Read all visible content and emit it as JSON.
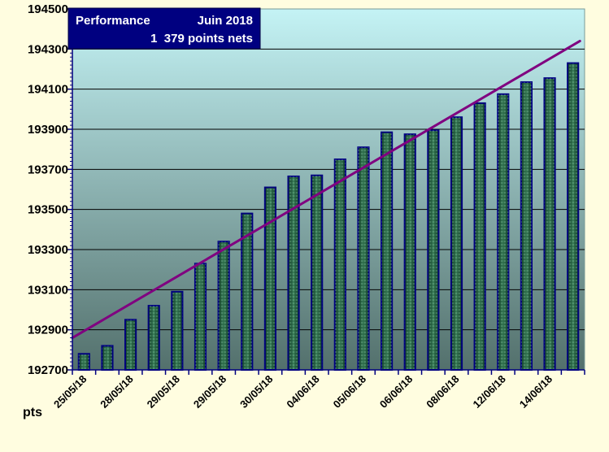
{
  "chart_data": {
    "type": "bar",
    "title_box": {
      "line1_left": "Performance",
      "line1_right": "Juin 2018",
      "line2": "1  379 points nets"
    },
    "y_unit_label": "pts",
    "ylim": [
      192700,
      194500
    ],
    "yticks": [
      192700,
      192900,
      193100,
      193300,
      193500,
      193700,
      193900,
      194100,
      194300,
      194500
    ],
    "x_tick_labels": [
      "25/05/18",
      "28/05/18",
      "29/05/18",
      "29/05/18",
      "30/05/18",
      "04/06/18",
      "05/06/18",
      "06/06/18",
      "08/06/18",
      "12/06/18",
      "14/06/18"
    ],
    "values": [
      192780,
      192820,
      192950,
      193020,
      193090,
      193230,
      193340,
      193480,
      193610,
      193665,
      193670,
      193750,
      193810,
      193885,
      193875,
      193895,
      193960,
      194030,
      194075,
      194135,
      194155,
      194230
    ],
    "trendline": {
      "start": 192860,
      "end": 194340,
      "color": "#800080"
    },
    "grid": "horizontal",
    "colors": {
      "bar_fill": "#1f5c3a",
      "bar_edge": "#000080",
      "plot_top": "#c4f3f5",
      "plot_bottom": "#53706c",
      "title_box": "#000080"
    }
  }
}
